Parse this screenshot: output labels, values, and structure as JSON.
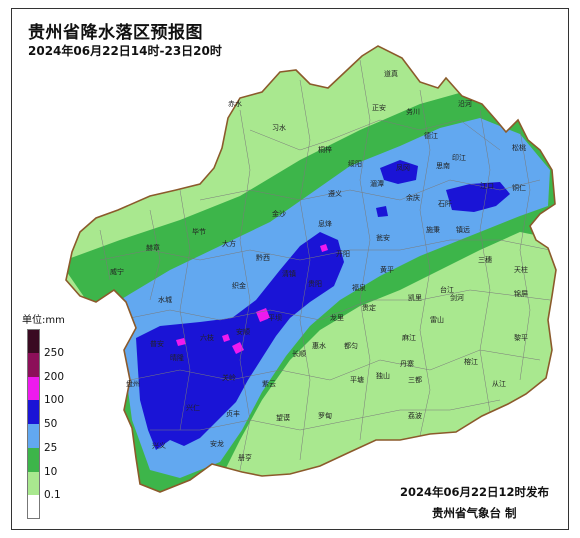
{
  "title": "贵州省降水落区预报图",
  "subtitle": "2024年06月22日14时-23日20时",
  "legend": {
    "unit_label": "单位:mm",
    "levels": [
      {
        "label": "250",
        "color": "#3a0a22"
      },
      {
        "label": "200",
        "color": "#8c0f59"
      },
      {
        "label": "100",
        "color": "#ee1aee"
      },
      {
        "label": "50",
        "color": "#1a14d6"
      },
      {
        "label": "25",
        "color": "#62a8f0"
      },
      {
        "label": "10",
        "color": "#3db54a"
      },
      {
        "label": "0.1",
        "color": "#a9e88f"
      },
      {
        "label": "",
        "color": "#ffffff"
      }
    ]
  },
  "issued": "2024年06月22日12时发布",
  "agency": "贵州省气象台 制",
  "colors": {
    "border": "#8b5a2b",
    "county_lines": "#7a7a7a",
    "light_green": "#a9e88f",
    "green": "#3db54a",
    "light_blue": "#62a8f0",
    "blue": "#1a14d6",
    "magenta": "#ee1aee"
  },
  "cities": [
    {
      "name": "道真"
    },
    {
      "name": "沿河"
    },
    {
      "name": "正安"
    },
    {
      "name": "务川"
    },
    {
      "name": "德江"
    },
    {
      "name": "印江"
    },
    {
      "name": "松桃"
    },
    {
      "name": "铜仁"
    },
    {
      "name": "习水"
    },
    {
      "name": "桐梓"
    },
    {
      "name": "绥阳"
    },
    {
      "name": "凤冈"
    },
    {
      "name": "思南"
    },
    {
      "name": "江口"
    },
    {
      "name": "赤水"
    },
    {
      "name": "遵义"
    },
    {
      "name": "湄潭"
    },
    {
      "name": "余庆"
    },
    {
      "name": "石阡"
    },
    {
      "name": "金沙"
    },
    {
      "name": "毕节"
    },
    {
      "name": "大方"
    },
    {
      "name": "黔西"
    },
    {
      "name": "息烽"
    },
    {
      "name": "开阳"
    },
    {
      "name": "瓮安"
    },
    {
      "name": "施秉"
    },
    {
      "name": "镇远"
    },
    {
      "name": "赫章"
    },
    {
      "name": "威宁"
    },
    {
      "name": "织金"
    },
    {
      "name": "清镇"
    },
    {
      "name": "贵阳"
    },
    {
      "name": "福泉"
    },
    {
      "name": "黄平"
    },
    {
      "name": "三穗"
    },
    {
      "name": "天柱"
    },
    {
      "name": "水城"
    },
    {
      "name": "安顺"
    },
    {
      "name": "龙里"
    },
    {
      "name": "凯里"
    },
    {
      "name": "剑河"
    },
    {
      "name": "锦屏"
    },
    {
      "name": "六枝"
    },
    {
      "name": "平坝"
    },
    {
      "name": "贵定"
    },
    {
      "name": "麻江"
    },
    {
      "name": "台江"
    },
    {
      "name": "黎平"
    },
    {
      "name": "盘州"
    },
    {
      "name": "关岭"
    },
    {
      "name": "长顺"
    },
    {
      "name": "都匀"
    },
    {
      "name": "丹寨"
    },
    {
      "name": "雷山"
    },
    {
      "name": "榕江"
    },
    {
      "name": "从江"
    },
    {
      "name": "兴仁"
    },
    {
      "name": "贞丰"
    },
    {
      "name": "紫云"
    },
    {
      "name": "平塘"
    },
    {
      "name": "独山"
    },
    {
      "name": "三都"
    },
    {
      "name": "兴义"
    },
    {
      "name": "安龙"
    },
    {
      "name": "望谟"
    },
    {
      "name": "罗甸"
    },
    {
      "name": "荔波"
    },
    {
      "name": "册亨"
    },
    {
      "name": "惠水"
    },
    {
      "name": "晴隆"
    },
    {
      "name": "普安"
    }
  ]
}
